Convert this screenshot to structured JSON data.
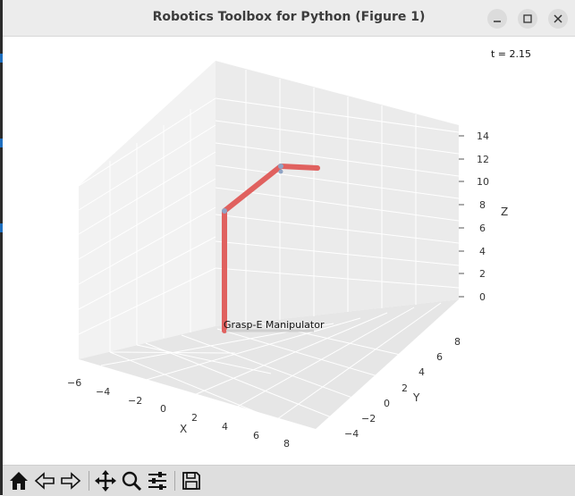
{
  "window": {
    "title": "Robotics Toolbox for Python (Figure 1)"
  },
  "plot": {
    "time_label": "t = 2.15",
    "robot_name": "Grasp-E Manipulator",
    "link_color": "#e0615f",
    "axes": {
      "x": {
        "label": "X",
        "ticks": [
          "−6",
          "−4",
          "−2",
          "0",
          "2",
          "4",
          "6",
          "8"
        ]
      },
      "y": {
        "label": "Y",
        "ticks": [
          "−4",
          "−2",
          "0",
          "2",
          "4",
          "6",
          "8"
        ]
      },
      "z": {
        "label": "Z",
        "ticks": [
          "0",
          "2",
          "4",
          "6",
          "8",
          "10",
          "12",
          "14"
        ]
      }
    }
  },
  "toolbar": {
    "buttons": [
      "home-icon",
      "back-icon",
      "forward-icon",
      "pan-icon",
      "zoom-icon",
      "configure-icon",
      "save-icon"
    ]
  }
}
